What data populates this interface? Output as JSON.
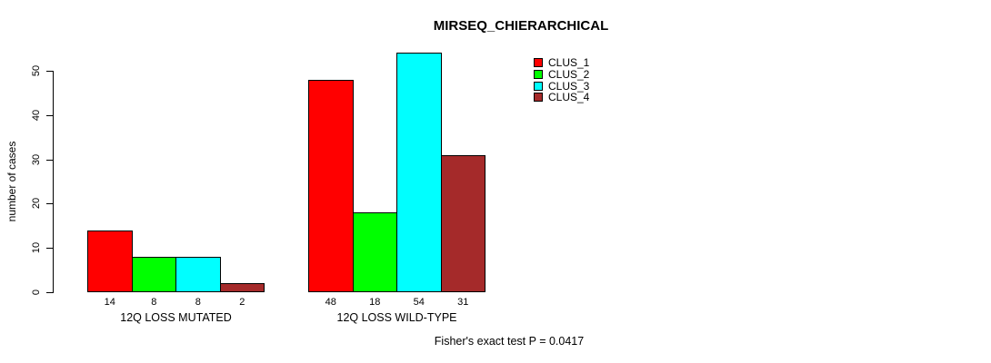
{
  "chart_data": {
    "type": "bar",
    "title": "MIRSEQ_CHIERARCHICAL",
    "xlabel": "",
    "ylabel": "number of cases",
    "ylim": [
      0,
      50
    ],
    "yticks": [
      0,
      10,
      20,
      30,
      40,
      50
    ],
    "categories": [
      "12Q LOSS MUTATED",
      "12Q LOSS WILD-TYPE"
    ],
    "series": [
      {
        "name": "CLUS_1",
        "color": "#FF0000",
        "values": [
          14,
          48
        ]
      },
      {
        "name": "CLUS_2",
        "color": "#00FF00",
        "values": [
          8,
          18
        ]
      },
      {
        "name": "CLUS_3",
        "color": "#00FFFF",
        "values": [
          8,
          54
        ]
      },
      {
        "name": "CLUS_4",
        "color": "#A52A2A",
        "values": [
          2,
          31
        ]
      }
    ],
    "bar_value_labels": true,
    "legend_position": "top-right",
    "grid": false,
    "annotation": "Fisher's exact test P = 0.0417"
  }
}
